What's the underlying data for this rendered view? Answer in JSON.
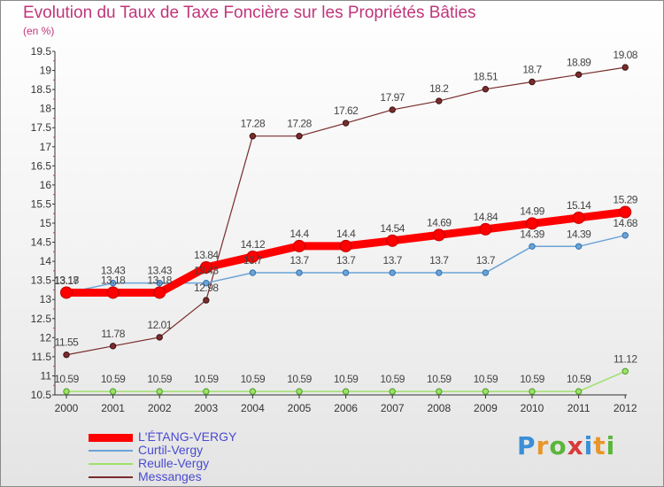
{
  "chart_data": {
    "type": "line",
    "title": "Evolution du Taux de Taxe Foncière sur les Propriétés Bâties",
    "unit_label": "(en %)",
    "x": [
      "2000",
      "2001",
      "2002",
      "2003",
      "2004",
      "2005",
      "2006",
      "2007",
      "2008",
      "2009",
      "2010",
      "2011",
      "2012"
    ],
    "ylim": [
      10.5,
      19.5
    ],
    "yticks": [
      "10.5",
      "11",
      "11.5",
      "12",
      "12.5",
      "13",
      "13.5",
      "14",
      "14.5",
      "15",
      "15.5",
      "16",
      "16.5",
      "17",
      "17.5",
      "18",
      "18.5",
      "19",
      "19.5"
    ],
    "series": [
      {
        "name": "L'ÉTANG-VERGY",
        "color": "#ff0000",
        "values": [
          13.18,
          13.18,
          13.18,
          13.84,
          14.12,
          14.4,
          14.4,
          14.54,
          14.69,
          14.84,
          14.99,
          15.14,
          15.29
        ],
        "labels": [
          "13.18",
          "13.18",
          "13.18",
          "13.84",
          "14.12",
          "14.4",
          "14.4",
          "14.54",
          "14.69",
          "14.84",
          "14.99",
          "15.14",
          "15.29"
        ]
      },
      {
        "name": "Curtil-Vergy",
        "color": "#6ba3d6",
        "values": [
          13.17,
          13.43,
          13.43,
          13.43,
          13.7,
          13.7,
          13.7,
          13.7,
          13.7,
          13.7,
          14.39,
          14.39,
          14.68
        ],
        "labels": [
          "13.17",
          "13.43",
          "13.43",
          "13.43",
          "13.7",
          "13.7",
          "13.7",
          "13.7",
          "13.7",
          "13.7",
          "14.39",
          "14.39",
          "14.68"
        ]
      },
      {
        "name": "Reulle-Vergy",
        "color": "#9ee06a",
        "values": [
          10.59,
          10.59,
          10.59,
          10.59,
          10.59,
          10.59,
          10.59,
          10.59,
          10.59,
          10.59,
          10.59,
          10.59,
          11.12
        ],
        "labels": [
          "10.59",
          "10.59",
          "10.59",
          "10.59",
          "10.59",
          "10.59",
          "10.59",
          "10.59",
          "10.59",
          "10.59",
          "10.59",
          "10.59",
          "11.12"
        ]
      },
      {
        "name": "Messanges",
        "color": "#7a2c2c",
        "values": [
          11.55,
          11.78,
          12.01,
          12.98,
          17.28,
          17.28,
          17.62,
          17.97,
          18.2,
          18.51,
          18.7,
          18.89,
          19.08
        ],
        "labels": [
          "11.55",
          "11.78",
          "12.01",
          "12.98",
          "17.28",
          "17.28",
          "17.62",
          "17.97",
          "18.2",
          "18.51",
          "18.7",
          "18.89",
          "19.08"
        ]
      }
    ],
    "legend_position": "bottom-left",
    "grid": false
  },
  "brand": {
    "letters": [
      "P",
      "r",
      "o",
      "x",
      "i",
      "t",
      "i"
    ],
    "colors": [
      "#3a8fd8",
      "#e8962a",
      "#5bb53a",
      "#d93a3a",
      "#3a8fd8",
      "#e8962a",
      "#5bb53a"
    ]
  }
}
